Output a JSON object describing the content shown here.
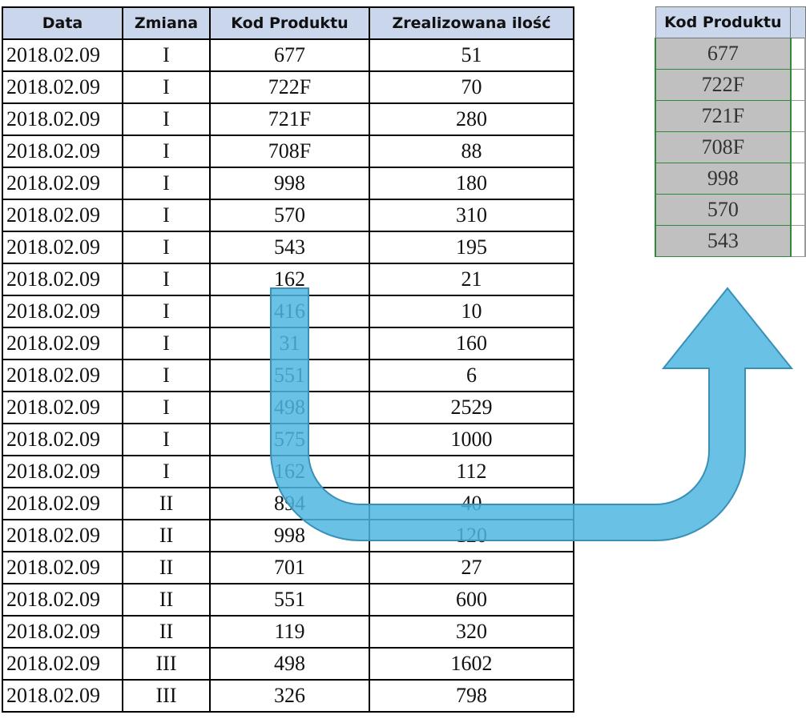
{
  "left_table": {
    "headers": [
      "Data",
      "Zmiana",
      "Kod Produktu",
      "Zrealizowana ilość"
    ],
    "rows": [
      [
        "2018.02.09",
        "I",
        "677",
        "51"
      ],
      [
        "2018.02.09",
        "I",
        "722F",
        "70"
      ],
      [
        "2018.02.09",
        "I",
        "721F",
        "280"
      ],
      [
        "2018.02.09",
        "I",
        "708F",
        "88"
      ],
      [
        "2018.02.09",
        "I",
        "998",
        "180"
      ],
      [
        "2018.02.09",
        "I",
        "570",
        "310"
      ],
      [
        "2018.02.09",
        "I",
        "543",
        "195"
      ],
      [
        "2018.02.09",
        "I",
        "162",
        "21"
      ],
      [
        "2018.02.09",
        "I",
        "416",
        "10"
      ],
      [
        "2018.02.09",
        "I",
        "31",
        "160"
      ],
      [
        "2018.02.09",
        "I",
        "551",
        "6"
      ],
      [
        "2018.02.09",
        "I",
        "498",
        "2529"
      ],
      [
        "2018.02.09",
        "I",
        "575",
        "1000"
      ],
      [
        "2018.02.09",
        "I",
        "162",
        "112"
      ],
      [
        "2018.02.09",
        "II",
        "894",
        "40"
      ],
      [
        "2018.02.09",
        "II",
        "998",
        "120"
      ],
      [
        "2018.02.09",
        "II",
        "701",
        "27"
      ],
      [
        "2018.02.09",
        "II",
        "551",
        "600"
      ],
      [
        "2018.02.09",
        "II",
        "119",
        "320"
      ],
      [
        "2018.02.09",
        "III",
        "498",
        "1602"
      ],
      [
        "2018.02.09",
        "III",
        "326",
        "798"
      ]
    ]
  },
  "right_table": {
    "header": "Kod Produktu",
    "rows": [
      "677",
      "722F",
      "721F",
      "708F",
      "998",
      "570",
      "543"
    ]
  }
}
